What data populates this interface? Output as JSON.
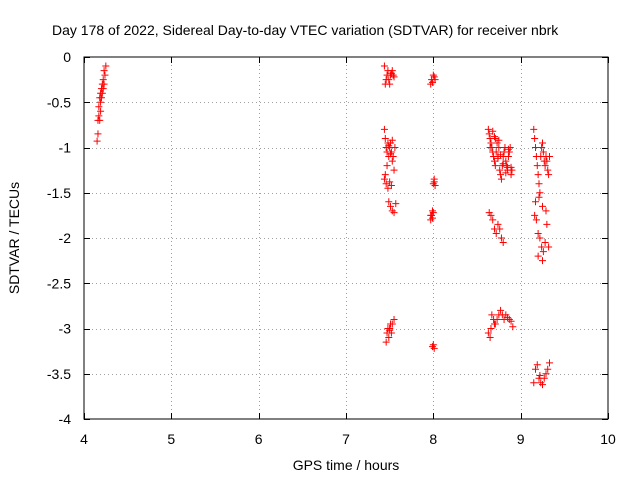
{
  "chart_data": {
    "type": "scatter",
    "title": "Day 178 of 2022, Sidereal Day-to-day VTEC variation (SDTVAR) for receiver nbrk",
    "xlabel": "GPS time / hours",
    "ylabel": "SDTVAR / TECUs",
    "xlim": [
      4,
      10
    ],
    "ylim": [
      -4,
      0
    ],
    "xticks": [
      4,
      5,
      6,
      7,
      8,
      9,
      10
    ],
    "yticks": [
      0,
      -0.5,
      -1,
      -1.5,
      -2,
      -2.5,
      -3,
      -3.5,
      -4
    ],
    "xtick_labels": [
      "4",
      "5",
      "6",
      "7",
      "8",
      "9",
      "10"
    ],
    "ytick_labels": [
      "0",
      "-0.5",
      "-1",
      "-1.5",
      "-2",
      "-2.5",
      "-3",
      "-3.5",
      "-4"
    ],
    "grid": true,
    "marker": "+",
    "marker_color": "#ff0000",
    "series": [
      {
        "name": "SDTVAR",
        "x": [
          4.15,
          4.16,
          4.17,
          4.17,
          4.18,
          4.18,
          4.19,
          4.19,
          4.2,
          4.2,
          4.21,
          4.21,
          4.22,
          4.22,
          4.23,
          4.23,
          4.24,
          4.25,
          4.16,
          4.19,
          7.44,
          7.45,
          7.46,
          7.47,
          7.48,
          7.49,
          7.5,
          7.51,
          7.52,
          7.53,
          7.54,
          7.55,
          7.44,
          7.45,
          7.46,
          7.47,
          7.48,
          7.49,
          7.5,
          7.51,
          7.52,
          7.53,
          7.54,
          7.55,
          7.56,
          7.45,
          7.47,
          7.49,
          7.51,
          7.53,
          7.44,
          7.46,
          7.48,
          7.5,
          7.52,
          7.49,
          7.51,
          7.53,
          7.55,
          7.57,
          7.46,
          7.47,
          7.48,
          7.49,
          7.5,
          7.51,
          7.52,
          7.53,
          7.55,
          7.5,
          7.97,
          7.98,
          7.99,
          8.0,
          8.01,
          8.02,
          7.97,
          7.98,
          7.99,
          8.0,
          8.01,
          7.97,
          7.99,
          8.0,
          8.01,
          8.02,
          7.99,
          8.0,
          8.01,
          8.63,
          8.64,
          8.65,
          8.66,
          8.67,
          8.68,
          8.69,
          8.7,
          8.71,
          8.72,
          8.73,
          8.74,
          8.75,
          8.76,
          8.77,
          8.78,
          8.79,
          8.8,
          8.81,
          8.82,
          8.83,
          8.84,
          8.85,
          8.86,
          8.87,
          8.88,
          8.89,
          8.9,
          8.65,
          8.68,
          8.71,
          8.74,
          8.77,
          8.8,
          8.83,
          8.86,
          8.89,
          8.7,
          8.75,
          8.85,
          8.64,
          8.66,
          8.68,
          8.7,
          8.72,
          8.74,
          8.76,
          8.78,
          8.8,
          8.63,
          8.65,
          8.67,
          8.69,
          8.71,
          8.73,
          8.75,
          8.77,
          8.79,
          8.81,
          8.83,
          8.85,
          8.87,
          8.89,
          8.91,
          8.66,
          8.7,
          9.15,
          9.16,
          9.17,
          9.18,
          9.19,
          9.2,
          9.21,
          9.22,
          9.23,
          9.24,
          9.25,
          9.26,
          9.27,
          9.28,
          9.29,
          9.3,
          9.31,
          9.32,
          9.33,
          9.17,
          9.21,
          9.25,
          9.29,
          9.16,
          9.18,
          9.2,
          9.22,
          9.24,
          9.26,
          9.28,
          9.3,
          9.32,
          9.2,
          9.25,
          9.15,
          9.17,
          9.19,
          9.21,
          9.23,
          9.25,
          9.27,
          9.29,
          9.31,
          9.33,
          9.22
        ],
        "y": [
          -0.93,
          -0.7,
          -0.55,
          -0.65,
          -0.45,
          -0.7,
          -0.4,
          -0.5,
          -0.35,
          -0.45,
          -0.3,
          -0.4,
          -0.25,
          -0.35,
          -0.15,
          -0.3,
          -0.2,
          -0.1,
          -0.85,
          -0.6,
          -0.1,
          -0.3,
          -0.25,
          -0.2,
          -0.15,
          -0.25,
          -0.3,
          -0.2,
          -0.18,
          -0.15,
          -0.2,
          -0.22,
          -0.8,
          -0.9,
          -1.0,
          -1.05,
          -0.95,
          -1.1,
          -1.0,
          -0.95,
          -1.05,
          -1.15,
          -1.1,
          -1.25,
          -1.0,
          -1.3,
          -1.2,
          -0.98,
          -1.07,
          -0.92,
          -1.35,
          -1.4,
          -1.45,
          -1.38,
          -1.42,
          -1.6,
          -1.65,
          -1.7,
          -1.72,
          -1.62,
          -3.15,
          -3.05,
          -3.0,
          -3.1,
          -3.0,
          -2.95,
          -3.05,
          -2.95,
          -2.9,
          -3.02,
          -0.3,
          -0.25,
          -0.28,
          -0.2,
          -0.22,
          -0.25,
          -1.8,
          -1.75,
          -1.7,
          -1.4,
          -1.35,
          -1.75,
          -1.78,
          -1.72,
          -1.38,
          -1.42,
          -3.2,
          -3.18,
          -3.22,
          -0.8,
          -0.85,
          -0.9,
          -0.95,
          -1.0,
          -1.05,
          -1.1,
          -1.15,
          -1.2,
          -1.05,
          -0.95,
          -1.1,
          -1.0,
          -1.25,
          -1.3,
          -1.35,
          -1.2,
          -1.1,
          -1.05,
          -1.0,
          -1.15,
          -1.2,
          -1.25,
          -1.1,
          -1.05,
          -1.0,
          -1.3,
          -1.25,
          -1.0,
          -0.82,
          -0.9,
          -1.12,
          -1.08,
          -1.18,
          -1.28,
          -1.02,
          -1.22,
          -0.88,
          -0.92,
          -1.22,
          -1.72,
          -1.75,
          -1.8,
          -1.9,
          -1.95,
          -1.85,
          -1.9,
          -2.0,
          -2.05,
          -3.05,
          -3.1,
          -2.85,
          -2.9,
          -2.95,
          -2.9,
          -2.85,
          -2.8,
          -2.85,
          -2.9,
          -2.85,
          -2.88,
          -2.9,
          -2.92,
          -2.98,
          -3.0,
          -2.95,
          -0.8,
          -0.9,
          -1.0,
          -1.1,
          -1.2,
          -1.3,
          -1.4,
          -1.5,
          -1.1,
          -1.0,
          -0.95,
          -1.05,
          -1.15,
          -1.2,
          -1.1,
          -1.15,
          -1.25,
          -1.3,
          -1.1,
          -1.6,
          -1.55,
          -1.65,
          -1.7,
          -1.75,
          -1.8,
          -1.95,
          -2.0,
          -2.1,
          -2.15,
          -2.05,
          -1.85,
          -2.1,
          -2.2,
          -2.25,
          -3.6,
          -3.45,
          -3.4,
          -3.55,
          -3.6,
          -3.62,
          -3.55,
          -3.5,
          -3.45,
          -3.38,
          -3.52
        ]
      }
    ]
  }
}
